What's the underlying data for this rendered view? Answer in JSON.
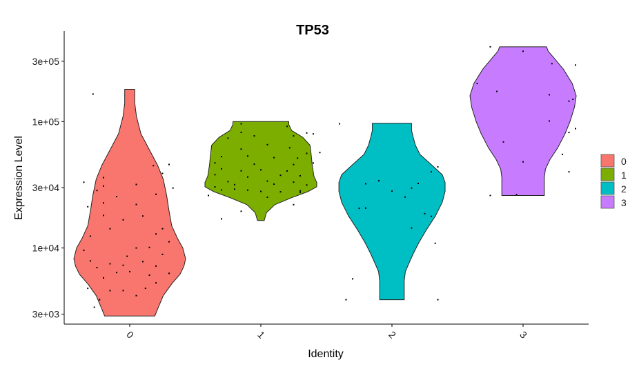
{
  "chart_data": {
    "type": "violin",
    "title": "TP53",
    "xlabel": "Identity",
    "ylabel": "Expression Level",
    "y_scale": "log",
    "ylim": [
      2500,
      520000
    ],
    "yticks": [
      3000,
      10000,
      30000,
      100000,
      300000
    ],
    "ytick_labels": [
      "3e+03",
      "1e+04",
      "3e+04",
      "1e+05",
      "3e+05"
    ],
    "categories": [
      "0",
      "1",
      "2",
      "3"
    ],
    "legend_position": "right",
    "series": [
      {
        "name": "0",
        "color": "#F8766D",
        "min": 2900,
        "max": 180000,
        "profile": [
          [
            2900,
            0.45
          ],
          [
            3300,
            0.5
          ],
          [
            4200,
            0.6
          ],
          [
            5200,
            0.75
          ],
          [
            6200,
            0.9
          ],
          [
            7200,
            0.97
          ],
          [
            8200,
            1.0
          ],
          [
            10000,
            0.95
          ],
          [
            12000,
            0.85
          ],
          [
            15000,
            0.75
          ],
          [
            20000,
            0.7
          ],
          [
            26000,
            0.66
          ],
          [
            35000,
            0.6
          ],
          [
            45000,
            0.5
          ],
          [
            60000,
            0.35
          ],
          [
            80000,
            0.2
          ],
          [
            110000,
            0.12
          ],
          [
            140000,
            0.09
          ],
          [
            180000,
            0.09
          ]
        ],
        "points": [
          [
            -0.27,
            3400
          ],
          [
            -0.23,
            3900
          ],
          [
            -0.32,
            4800
          ],
          [
            -0.15,
            4600
          ],
          [
            -0.05,
            4600
          ],
          [
            0.05,
            4200
          ],
          [
            0.12,
            4800
          ],
          [
            0.2,
            5300
          ],
          [
            -0.2,
            5800
          ],
          [
            -0.1,
            6400
          ],
          [
            0.0,
            6500
          ],
          [
            0.15,
            6100
          ],
          [
            0.3,
            6300
          ],
          [
            -0.25,
            7000
          ],
          [
            -0.15,
            7500
          ],
          [
            -0.05,
            7300
          ],
          [
            0.1,
            7800
          ],
          [
            0.2,
            7200
          ],
          [
            -0.3,
            7900
          ],
          [
            -0.02,
            8600
          ],
          [
            0.25,
            8900
          ],
          [
            -0.35,
            9600
          ],
          [
            0.05,
            10000
          ],
          [
            0.15,
            10100
          ],
          [
            0.3,
            11200
          ],
          [
            -0.3,
            12400
          ],
          [
            0.2,
            12900
          ],
          [
            -0.15,
            14200
          ],
          [
            0.25,
            14200
          ],
          [
            -0.05,
            16700
          ],
          [
            -0.2,
            18100
          ],
          [
            0.1,
            17900
          ],
          [
            -0.32,
            21200
          ],
          [
            -0.2,
            22700
          ],
          [
            0.05,
            22100
          ],
          [
            -0.1,
            25500
          ],
          [
            0.2,
            26600
          ],
          [
            -0.25,
            28500
          ],
          [
            0.33,
            29800
          ],
          [
            -0.2,
            30900
          ],
          [
            0.05,
            31800
          ],
          [
            -0.35,
            33100
          ],
          [
            -0.2,
            36000
          ],
          [
            0.25,
            38900
          ],
          [
            0.18,
            44800
          ],
          [
            0.3,
            45800
          ],
          [
            -0.28,
            165000
          ]
        ]
      },
      {
        "name": "1",
        "color": "#7CAE00",
        "min": 16500,
        "max": 100000,
        "profile": [
          [
            16500,
            0.06
          ],
          [
            19000,
            0.1
          ],
          [
            22000,
            0.25
          ],
          [
            25000,
            0.55
          ],
          [
            28000,
            0.85
          ],
          [
            30500,
            1.0
          ],
          [
            33000,
            1.0
          ],
          [
            37000,
            0.95
          ],
          [
            45000,
            0.92
          ],
          [
            55000,
            0.9
          ],
          [
            65000,
            0.88
          ],
          [
            75000,
            0.75
          ],
          [
            85000,
            0.55
          ],
          [
            95000,
            0.5
          ],
          [
            100000,
            0.5
          ]
        ],
        "points": [
          [
            -0.3,
            17000
          ],
          [
            -0.15,
            19500
          ],
          [
            0.25,
            22000
          ],
          [
            -0.4,
            26000
          ],
          [
            0.05,
            25200
          ],
          [
            0.3,
            27500
          ],
          [
            -0.3,
            28800
          ],
          [
            -0.2,
            29200
          ],
          [
            -0.1,
            28700
          ],
          [
            0.0,
            28000
          ],
          [
            0.15,
            27800
          ],
          [
            0.3,
            28300
          ],
          [
            -0.35,
            30400
          ],
          [
            -0.2,
            31700
          ],
          [
            0.1,
            32000
          ],
          [
            0.35,
            31500
          ],
          [
            -0.25,
            33500
          ],
          [
            0.05,
            33800
          ],
          [
            0.25,
            33200
          ],
          [
            -0.35,
            38000
          ],
          [
            -0.1,
            36400
          ],
          [
            0.15,
            37600
          ],
          [
            0.3,
            37200
          ],
          [
            -0.3,
            42300
          ],
          [
            -0.15,
            40800
          ],
          [
            0.0,
            41500
          ],
          [
            0.2,
            40700
          ],
          [
            -0.35,
            47100
          ],
          [
            -0.05,
            46000
          ],
          [
            0.25,
            45700
          ],
          [
            0.4,
            47000
          ],
          [
            -0.3,
            52800
          ],
          [
            -0.1,
            53400
          ],
          [
            0.1,
            51800
          ],
          [
            0.28,
            51300
          ],
          [
            -0.15,
            60600
          ],
          [
            0.35,
            56000
          ],
          [
            0.45,
            56900
          ],
          [
            0.22,
            62000
          ],
          [
            0.05,
            65600
          ],
          [
            -0.25,
            73900
          ],
          [
            -0.05,
            77000
          ],
          [
            0.25,
            77000
          ],
          [
            -0.15,
            82100
          ],
          [
            0.35,
            81300
          ],
          [
            0.4,
            79800
          ],
          [
            -0.15,
            96000
          ],
          [
            0.2,
            91500
          ]
        ]
      },
      {
        "name": "2",
        "color": "#00BFC4",
        "min": 3900,
        "max": 97000,
        "profile": [
          [
            3900,
            0.22
          ],
          [
            4500,
            0.22
          ],
          [
            5500,
            0.22
          ],
          [
            6500,
            0.24
          ],
          [
            7500,
            0.3
          ],
          [
            9000,
            0.38
          ],
          [
            11000,
            0.48
          ],
          [
            14000,
            0.62
          ],
          [
            18000,
            0.78
          ],
          [
            23000,
            0.9
          ],
          [
            28000,
            0.95
          ],
          [
            33000,
            0.95
          ],
          [
            38000,
            0.9
          ],
          [
            45000,
            0.72
          ],
          [
            55000,
            0.5
          ],
          [
            65000,
            0.42
          ],
          [
            75000,
            0.38
          ],
          [
            85000,
            0.35
          ],
          [
            97000,
            0.35
          ]
        ],
        "points": [
          [
            -0.35,
            3900
          ],
          [
            0.35,
            3900
          ],
          [
            -0.3,
            5700
          ],
          [
            0.33,
            10900
          ],
          [
            -0.25,
            20600
          ],
          [
            -0.2,
            20700
          ],
          [
            0.3,
            17800
          ],
          [
            0.15,
            14400
          ],
          [
            0.25,
            18700
          ],
          [
            0.1,
            25300
          ],
          [
            -0.2,
            32200
          ],
          [
            0.0,
            28200
          ],
          [
            0.15,
            29800
          ],
          [
            -0.1,
            34000
          ],
          [
            0.2,
            32400
          ],
          [
            0.35,
            43800
          ],
          [
            -0.4,
            96000
          ],
          [
            0.3,
            40000
          ]
        ]
      },
      {
        "name": "3",
        "color": "#C77CFF",
        "min": 26000,
        "max": 390000,
        "profile": [
          [
            26000,
            0.38
          ],
          [
            30000,
            0.38
          ],
          [
            36000,
            0.38
          ],
          [
            42000,
            0.4
          ],
          [
            50000,
            0.48
          ],
          [
            62000,
            0.62
          ],
          [
            80000,
            0.75
          ],
          [
            100000,
            0.84
          ],
          [
            130000,
            0.92
          ],
          [
            160000,
            0.95
          ],
          [
            200000,
            0.88
          ],
          [
            260000,
            0.72
          ],
          [
            320000,
            0.55
          ],
          [
            360000,
            0.45
          ],
          [
            390000,
            0.42
          ]
        ],
        "points": [
          [
            -0.25,
            26000
          ],
          [
            -0.05,
            26500
          ],
          [
            0.35,
            40000
          ],
          [
            0.0,
            48000
          ],
          [
            0.3,
            55000
          ],
          [
            -0.15,
            69000
          ],
          [
            0.35,
            82000
          ],
          [
            0.4,
            88000
          ],
          [
            0.2,
            101000
          ],
          [
            0.35,
            145000
          ],
          [
            0.38,
            150000
          ],
          [
            0.2,
            163000
          ],
          [
            -0.2,
            173000
          ],
          [
            -0.35,
            200000
          ],
          [
            0.4,
            280000
          ],
          [
            0.22,
            287000
          ],
          [
            -0.25,
            390000
          ],
          [
            0.0,
            360000
          ]
        ]
      }
    ]
  }
}
